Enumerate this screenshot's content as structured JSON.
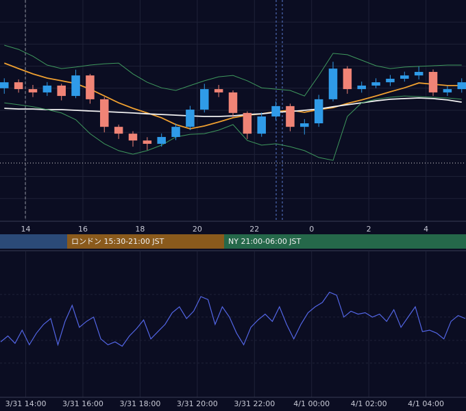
{
  "chart_data": [
    {
      "type": "candlestick",
      "x": [
        13.25,
        13.75,
        14.25,
        14.75,
        15.25,
        15.75,
        16.25,
        16.75,
        17.25,
        17.75,
        18.25,
        18.75,
        19.25,
        19.75,
        20.25,
        20.75,
        21.25,
        21.75,
        22.25,
        22.75,
        23.25,
        23.75,
        24.25,
        24.75,
        25.25,
        25.75,
        26.25,
        26.75,
        27.25,
        27.75,
        28.25,
        28.75,
        29.25
      ],
      "open": [
        60.0,
        62.7,
        59.6,
        58.1,
        61.2,
        56.5,
        65.8,
        55.0,
        42.5,
        39.4,
        36.3,
        34.8,
        37.9,
        42.5,
        50.3,
        59.6,
        58.1,
        48.8,
        39.4,
        47.2,
        51.9,
        42.5,
        44.1,
        55.0,
        68.9,
        59.6,
        61.2,
        62.7,
        64.3,
        65.8,
        67.4,
        58.1,
        59.6
      ],
      "high": [
        64.5,
        64.0,
        61.5,
        62.8,
        62.0,
        68.4,
        66.5,
        56.0,
        43.5,
        40.5,
        37.8,
        39.5,
        44.0,
        52.0,
        62.0,
        61.5,
        59.0,
        49.5,
        49.0,
        54.0,
        53.0,
        46.0,
        57.0,
        72.0,
        70.0,
        63.0,
        64.5,
        66.0,
        67.5,
        69.8,
        68.5,
        61.0,
        64.5
      ],
      "low": [
        57.5,
        58.0,
        56.0,
        56.5,
        54.5,
        55.5,
        53.0,
        40.0,
        37.0,
        33.5,
        32.0,
        33.5,
        36.5,
        41.0,
        49.0,
        56.0,
        47.0,
        37.0,
        38.0,
        45.5,
        40.5,
        39.0,
        42.5,
        54.0,
        57.5,
        58.0,
        60.0,
        61.0,
        63.0,
        64.0,
        56.5,
        56.5,
        58.0
      ],
      "close": [
        62.7,
        59.6,
        58.1,
        61.2,
        56.5,
        65.8,
        55.0,
        42.5,
        39.4,
        36.3,
        34.8,
        37.9,
        42.5,
        50.3,
        59.6,
        58.1,
        48.8,
        39.4,
        47.2,
        51.9,
        42.5,
        44.1,
        55.0,
        68.9,
        59.6,
        61.2,
        62.7,
        64.3,
        65.8,
        67.4,
        58.1,
        59.6,
        62.7
      ],
      "up_color": "#2f9be8",
      "down_color": "#f08476",
      "lines": [
        {
          "color": "#f0a030",
          "values": [
            71.4,
            68.9,
            66.5,
            64.6,
            63.4,
            62.1,
            59.6,
            56.5,
            53.4,
            50.9,
            48.8,
            46.6,
            43.5,
            41.6,
            42.9,
            44.7,
            46.6,
            47.8,
            48.4,
            49.4,
            50.0,
            49.1,
            50.3,
            51.2,
            53.1,
            54.7,
            56.5,
            58.4,
            60.2,
            62.4,
            61.8,
            61.2,
            61.2
          ]
        },
        {
          "color": "#f2f2f2",
          "values": [
            50.9,
            50.6,
            50.6,
            50.3,
            50.3,
            50.0,
            49.7,
            49.4,
            49.1,
            48.8,
            48.4,
            48.1,
            47.8,
            47.5,
            47.2,
            47.2,
            47.5,
            48.1,
            48.4,
            49.1,
            49.4,
            50.0,
            50.6,
            51.6,
            52.5,
            53.4,
            54.3,
            55.0,
            55.3,
            55.6,
            55.3,
            54.7,
            53.7
          ]
        },
        {
          "color": "#3f9a5e",
          "values": [
            79.5,
            77.6,
            74.5,
            70.5,
            68.9,
            69.6,
            70.5,
            71.1,
            71.4,
            66.5,
            62.7,
            60.2,
            59.0,
            61.2,
            63.4,
            65.2,
            65.8,
            63.4,
            60.2,
            59.6,
            59.0,
            56.5,
            65.8,
            75.8,
            75.2,
            72.7,
            70.2,
            68.9,
            69.6,
            69.9,
            70.2,
            70.5,
            70.5
          ]
        },
        {
          "color": "#3f9a5e",
          "values": [
            53.4,
            52.5,
            51.6,
            50.3,
            48.8,
            45.7,
            39.4,
            34.8,
            31.7,
            30.1,
            31.7,
            34.2,
            37.9,
            39.1,
            39.4,
            41.0,
            43.5,
            36.3,
            34.2,
            34.8,
            33.5,
            31.7,
            28.6,
            27.3,
            47.2,
            53.4,
            55.0,
            55.9,
            56.5,
            56.2,
            55.9,
            55.6,
            55.0
          ]
        }
      ],
      "xlim": [
        13.1,
        29.4
      ],
      "ylim": [
        0,
        100
      ],
      "xticks": [
        14,
        16,
        18,
        20,
        22,
        {
          "value": 24,
          "label": "0"
        },
        {
          "value": 26,
          "label": "2"
        },
        {
          "value": 28,
          "label": "4"
        }
      ],
      "yticks": [
        10,
        20,
        30,
        40,
        50,
        60,
        70,
        80,
        90
      ],
      "grid": true
    },
    {
      "type": "line",
      "x": [
        13.125,
        13.375,
        13.625,
        13.875,
        14.125,
        14.375,
        14.625,
        14.875,
        15.125,
        15.375,
        15.625,
        15.875,
        16.125,
        16.375,
        16.625,
        16.875,
        17.125,
        17.375,
        17.625,
        17.875,
        18.125,
        18.375,
        18.625,
        18.875,
        19.125,
        19.375,
        19.625,
        19.875,
        20.125,
        20.375,
        20.625,
        20.875,
        21.125,
        21.375,
        21.625,
        21.875,
        22.125,
        22.375,
        22.625,
        22.875,
        23.125,
        23.375,
        23.625,
        23.875,
        24.125,
        24.375,
        24.625,
        24.875,
        25.125,
        25.375,
        25.625,
        25.875,
        26.125,
        26.375,
        26.625,
        26.875,
        27.125,
        27.375,
        27.625,
        27.875,
        28.125,
        28.375,
        28.625,
        28.875,
        29.125,
        29.375
      ],
      "series": [
        {
          "color": "#5366e6",
          "values": [
            38,
            42,
            37,
            46,
            36,
            44,
            50,
            54,
            36,
            52,
            63,
            48,
            52,
            55,
            40,
            36,
            38,
            35,
            42,
            47,
            53,
            40,
            45,
            50,
            58,
            62,
            54,
            59,
            69,
            67,
            50,
            62,
            55,
            44,
            36,
            48,
            53,
            57,
            52,
            62,
            50,
            40,
            50,
            58,
            62,
            65,
            72,
            70,
            55,
            59,
            57,
            58,
            55,
            57,
            52,
            60,
            48,
            55,
            62,
            45,
            46,
            44,
            40,
            52,
            56,
            54
          ]
        }
      ],
      "xlim": [
        13.1,
        29.4
      ],
      "ylim": [
        0,
        100
      ],
      "xticks": [
        {
          "value": 14,
          "label": "3/31 14:00"
        },
        {
          "value": 16,
          "label": "3/31 16:00"
        },
        {
          "value": 18,
          "label": "3/31 18:00"
        },
        {
          "value": 20,
          "label": "3/31 20:00"
        },
        {
          "value": 22,
          "label": "3/31 22:00"
        },
        {
          "value": 24,
          "label": "4/1 00:00"
        },
        {
          "value": 26,
          "label": "4/1 02:00"
        },
        {
          "value": 28,
          "label": "4/1 04:00"
        }
      ],
      "yticks": [
        23.5,
        39,
        55,
        70.5
      ],
      "grid": true
    }
  ],
  "sessions": [
    {
      "label": "ロンドン 15:30-21:00 JST",
      "color": "#8a5a1c"
    },
    {
      "label": "NY 21:00-06:00 JST",
      "color": "#25684a"
    }
  ]
}
